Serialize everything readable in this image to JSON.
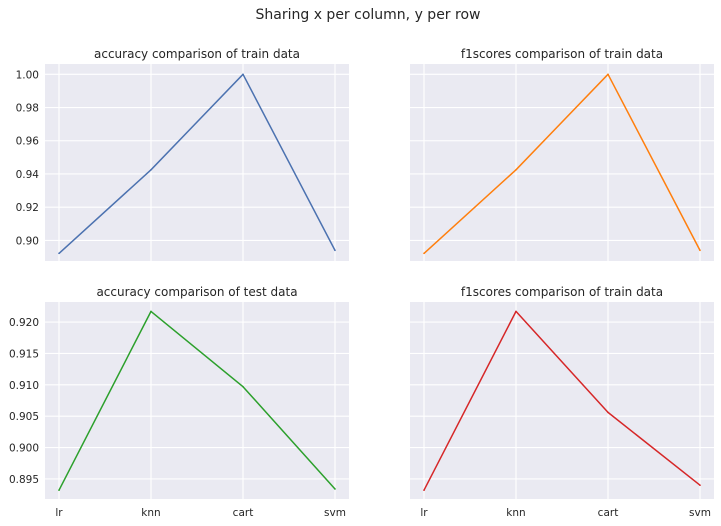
{
  "figure": {
    "suptitle": "Sharing x per column, y per row"
  },
  "chart_data": [
    {
      "type": "line",
      "title": "accuracy comparison of train data",
      "categories": [
        "lr",
        "knn",
        "cart",
        "svm"
      ],
      "values": [
        0.8922,
        0.9425,
        1.0,
        0.894
      ],
      "color": "#4c72b0",
      "ylim": [
        0.8876,
        1.0062
      ],
      "yticks": [
        "0.90",
        "0.92",
        "0.94",
        "0.96",
        "0.98",
        "1.00"
      ],
      "show_yticks": true,
      "show_xticks": false,
      "grid": true
    },
    {
      "type": "line",
      "title": "f1scores comparison of train data",
      "categories": [
        "lr",
        "knn",
        "cart",
        "svm"
      ],
      "values": [
        0.8922,
        0.9425,
        1.0,
        0.894
      ],
      "color": "#ff7f0e",
      "ylim": [
        0.8876,
        1.0062
      ],
      "yticks": [
        "0.90",
        "0.92",
        "0.94",
        "0.96",
        "0.98",
        "1.00"
      ],
      "show_yticks": false,
      "show_xticks": false,
      "grid": true
    },
    {
      "type": "line",
      "title": "accuracy comparison of test data",
      "categories": [
        "lr",
        "knn",
        "cart",
        "svm"
      ],
      "values": [
        0.8932,
        0.9217,
        0.9097,
        0.8934
      ],
      "color": "#2ca02c",
      "ylim": [
        0.8918,
        0.9232
      ],
      "yticks": [
        "0.895",
        "0.900",
        "0.905",
        "0.910",
        "0.915",
        "0.920"
      ],
      "show_yticks": true,
      "show_xticks": true,
      "grid": true
    },
    {
      "type": "line",
      "title": "f1scores comparison of train data",
      "categories": [
        "lr",
        "knn",
        "cart",
        "svm"
      ],
      "values": [
        0.8932,
        0.9217,
        0.9056,
        0.894
      ],
      "color": "#d62728",
      "ylim": [
        0.8918,
        0.9232
      ],
      "yticks": [
        "0.895",
        "0.900",
        "0.905",
        "0.910",
        "0.915",
        "0.920"
      ],
      "show_yticks": false,
      "show_xticks": true,
      "grid": true
    }
  ]
}
